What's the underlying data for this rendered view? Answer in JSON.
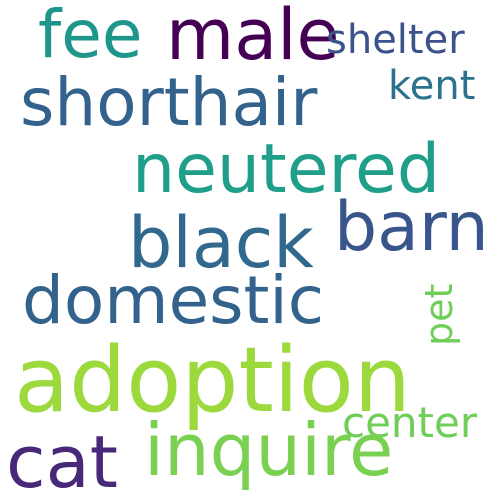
{
  "words": [
    {
      "id": "fee",
      "text": "fee",
      "color": "#1f968b"
    },
    {
      "id": "male",
      "text": "male",
      "color": "#440154"
    },
    {
      "id": "shelter",
      "text": "shelter",
      "color": "#3b528b"
    },
    {
      "id": "kent",
      "text": "kent",
      "color": "#2c728e"
    },
    {
      "id": "shorthair",
      "text": "shorthair",
      "color": "#33638d"
    },
    {
      "id": "neutered",
      "text": "neutered",
      "color": "#1f9e89"
    },
    {
      "id": "barn",
      "text": "barn",
      "color": "#39568c"
    },
    {
      "id": "black",
      "text": "black",
      "color": "#31688e"
    },
    {
      "id": "domestic",
      "text": "domestic",
      "color": "#33638d"
    },
    {
      "id": "pet",
      "text": "pet",
      "color": "#6ece58"
    },
    {
      "id": "adoption",
      "text": "adoption",
      "color": "#9bd93c"
    },
    {
      "id": "center",
      "text": "center",
      "color": "#6ece58"
    },
    {
      "id": "cat",
      "text": "cat",
      "color": "#482878"
    },
    {
      "id": "inquire",
      "text": "inquire",
      "color": "#7ad151"
    }
  ]
}
